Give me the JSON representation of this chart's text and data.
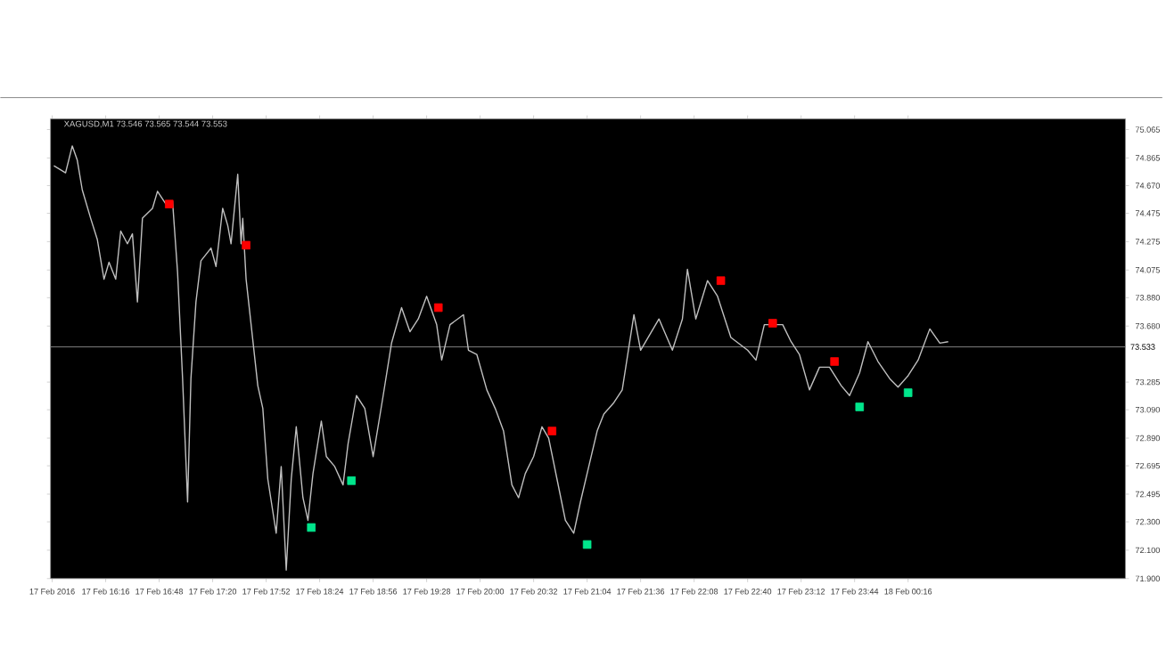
{
  "chart_data": {
    "type": "line",
    "title": "XAGUSD,M1 73.546 73.565 73.544 73.553",
    "xlim": [
      "2016-02-17T15:43",
      "2016-02-18T02:26"
    ],
    "ylim": [
      71.9,
      75.14
    ],
    "xticks": [
      {
        "value": "2016-02-17T15:44",
        "label": "17 Feb 2016"
      },
      {
        "value": "2016-02-17T16:16",
        "label": "17 Feb 16:16"
      },
      {
        "value": "2016-02-17T16:48",
        "label": "17 Feb 16:48"
      },
      {
        "value": "2016-02-17T17:20",
        "label": "17 Feb 17:20"
      },
      {
        "value": "2016-02-17T17:52",
        "label": "17 Feb 17:52"
      },
      {
        "value": "2016-02-17T18:24",
        "label": "17 Feb 18:24"
      },
      {
        "value": "2016-02-17T18:56",
        "label": "17 Feb 18:56"
      },
      {
        "value": "2016-02-17T19:28",
        "label": "17 Feb 19:28"
      },
      {
        "value": "2016-02-17T20:00",
        "label": "17 Feb 20:00"
      },
      {
        "value": "2016-02-17T20:32",
        "label": "17 Feb 20:32"
      },
      {
        "value": "2016-02-17T21:04",
        "label": "17 Feb 21:04"
      },
      {
        "value": "2016-02-17T21:36",
        "label": "17 Feb 21:36"
      },
      {
        "value": "2016-02-17T22:08",
        "label": "17 Feb 22:08"
      },
      {
        "value": "2016-02-17T22:40",
        "label": "17 Feb 22:40"
      },
      {
        "value": "2016-02-17T23:12",
        "label": "17 Feb 23:12"
      },
      {
        "value": "2016-02-17T23:44",
        "label": "17 Feb 23:44"
      },
      {
        "value": "2016-02-18T00:16",
        "label": "18 Feb 00:16"
      }
    ],
    "yticks": [
      {
        "value": 75.065,
        "label": "75.065"
      },
      {
        "value": 74.865,
        "label": "74.865"
      },
      {
        "value": 74.67,
        "label": "74.670"
      },
      {
        "value": 74.475,
        "label": "74.475"
      },
      {
        "value": 74.275,
        "label": "74.275"
      },
      {
        "value": 74.075,
        "label": "74.075"
      },
      {
        "value": 73.88,
        "label": "73.880"
      },
      {
        "value": 73.68,
        "label": "73.680"
      },
      {
        "value": 73.285,
        "label": "73.285"
      },
      {
        "value": 73.09,
        "label": "73.090"
      },
      {
        "value": 72.89,
        "label": "72.890"
      },
      {
        "value": 72.695,
        "label": "72.695"
      },
      {
        "value": 72.495,
        "label": "72.495"
      },
      {
        "value": 72.3,
        "label": "72.300"
      },
      {
        "value": 72.1,
        "label": "72.100"
      },
      {
        "value": 71.9,
        "label": "71.900"
      }
    ],
    "ref_lines": [
      {
        "axis": "y",
        "value": 73.533,
        "label": "73.533",
        "color": "#808080"
      }
    ],
    "series": [
      {
        "type": "line",
        "color": "#c0c0c0",
        "x": [
          "2016-02-17T15:45",
          "2016-02-17T15:52",
          "2016-02-17T15:56",
          "2016-02-17T15:59",
          "2016-02-17T16:02",
          "2016-02-17T16:07",
          "2016-02-17T16:11",
          "2016-02-17T16:15",
          "2016-02-17T16:18",
          "2016-02-17T16:22",
          "2016-02-17T16:25",
          "2016-02-17T16:29",
          "2016-02-17T16:32",
          "2016-02-17T16:35",
          "2016-02-17T16:38",
          "2016-02-17T16:44",
          "2016-02-17T16:47",
          "2016-02-17T16:52",
          "2016-02-17T16:56",
          "2016-02-17T16:59",
          "2016-02-17T17:02",
          "2016-02-17T17:05",
          "2016-02-17T17:07",
          "2016-02-17T17:10",
          "2016-02-17T17:13",
          "2016-02-17T17:19",
          "2016-02-17T17:22",
          "2016-02-17T17:26",
          "2016-02-17T17:29",
          "2016-02-17T17:31",
          "2016-02-17T17:35",
          "2016-02-17T17:37",
          "2016-02-17T17:38",
          "2016-02-17T17:40",
          "2016-02-17T17:43",
          "2016-02-17T17:47",
          "2016-02-17T17:50",
          "2016-02-17T17:53",
          "2016-02-17T17:58",
          "2016-02-17T18:01",
          "2016-02-17T18:04",
          "2016-02-17T18:07",
          "2016-02-17T18:10",
          "2016-02-17T18:14",
          "2016-02-17T18:17",
          "2016-02-17T18:20",
          "2016-02-17T18:25",
          "2016-02-17T18:28",
          "2016-02-17T18:33",
          "2016-02-17T18:38",
          "2016-02-17T18:41",
          "2016-02-17T18:46",
          "2016-02-17T18:51",
          "2016-02-17T18:56",
          "2016-02-17T19:02",
          "2016-02-17T19:07",
          "2016-02-17T19:13",
          "2016-02-17T19:18",
          "2016-02-17T19:23",
          "2016-02-17T19:28",
          "2016-02-17T19:34",
          "2016-02-17T19:37",
          "2016-02-17T19:42",
          "2016-02-17T19:50",
          "2016-02-17T19:53",
          "2016-02-17T19:58",
          "2016-02-17T20:04",
          "2016-02-17T20:09",
          "2016-02-17T20:14",
          "2016-02-17T20:19",
          "2016-02-17T20:23",
          "2016-02-17T20:27",
          "2016-02-17T20:32",
          "2016-02-17T20:37",
          "2016-02-17T20:41",
          "2016-02-17T20:46",
          "2016-02-17T20:51",
          "2016-02-17T20:56",
          "2016-02-17T21:00",
          "2016-02-17T21:05",
          "2016-02-17T21:10",
          "2016-02-17T21:14",
          "2016-02-17T21:20",
          "2016-02-17T21:25",
          "2016-02-17T21:32",
          "2016-02-17T21:36",
          "2016-02-17T21:47",
          "2016-02-17T21:55",
          "2016-02-17T22:01",
          "2016-02-17T22:04",
          "2016-02-17T22:09",
          "2016-02-17T22:16",
          "2016-02-17T22:22",
          "2016-02-17T22:30",
          "2016-02-17T22:40",
          "2016-02-17T22:45",
          "2016-02-17T22:50",
          "2016-02-17T23:01",
          "2016-02-17T23:06",
          "2016-02-17T23:11",
          "2016-02-17T23:17",
          "2016-02-17T23:23",
          "2016-02-17T23:29",
          "2016-02-17T23:36",
          "2016-02-17T23:41",
          "2016-02-17T23:47",
          "2016-02-17T23:52",
          "2016-02-17T23:58",
          "2016-02-18T00:05",
          "2016-02-18T00:10",
          "2016-02-18T00:16",
          "2016-02-18T00:22",
          "2016-02-18T00:29",
          "2016-02-18T00:35",
          "2016-02-18T00:40"
        ],
        "values": [
          74.81,
          74.76,
          74.95,
          74.85,
          74.64,
          74.44,
          74.29,
          74.01,
          74.13,
          74.01,
          74.35,
          74.26,
          74.33,
          73.85,
          74.44,
          74.51,
          74.63,
          74.54,
          74.56,
          74.06,
          73.31,
          72.44,
          73.31,
          73.85,
          74.14,
          74.23,
          74.1,
          74.51,
          74.39,
          74.26,
          74.75,
          74.26,
          74.44,
          74.01,
          73.69,
          73.26,
          73.1,
          72.6,
          72.22,
          72.69,
          71.96,
          72.6,
          72.97,
          72.47,
          72.31,
          72.64,
          73.01,
          72.76,
          72.69,
          72.56,
          72.85,
          73.19,
          73.1,
          72.76,
          73.19,
          73.56,
          73.81,
          73.64,
          73.73,
          73.89,
          73.69,
          73.44,
          73.69,
          73.76,
          73.51,
          73.48,
          73.23,
          73.1,
          72.94,
          72.56,
          72.47,
          72.64,
          72.76,
          72.97,
          72.89,
          72.6,
          72.31,
          72.22,
          72.44,
          72.69,
          72.94,
          73.06,
          73.14,
          73.23,
          73.76,
          73.51,
          73.73,
          73.51,
          73.73,
          74.08,
          73.73,
          74.0,
          73.89,
          73.6,
          73.51,
          73.44,
          73.69,
          73.69,
          73.57,
          73.48,
          73.23,
          73.39,
          73.39,
          73.26,
          73.19,
          73.35,
          73.57,
          73.43,
          73.31,
          73.25,
          73.33,
          73.44,
          73.66,
          73.56,
          73.57
        ]
      },
      {
        "type": "scatter",
        "marker": "square",
        "color": "#ff0000",
        "x": [
          "2016-02-17T16:54",
          "2016-02-17T17:40",
          "2016-02-17T19:35",
          "2016-02-17T20:43",
          "2016-02-17T22:24",
          "2016-02-17T22:55",
          "2016-02-17T23:32"
        ],
        "values": [
          74.54,
          74.25,
          73.81,
          72.94,
          74.0,
          73.7,
          73.43
        ]
      },
      {
        "type": "scatter",
        "marker": "square",
        "color": "#00e68c",
        "x": [
          "2016-02-17T18:19",
          "2016-02-17T18:43",
          "2016-02-17T21:04",
          "2016-02-17T23:47",
          "2016-02-18T00:16"
        ],
        "values": [
          72.26,
          72.59,
          72.14,
          73.11,
          73.21
        ]
      }
    ]
  }
}
